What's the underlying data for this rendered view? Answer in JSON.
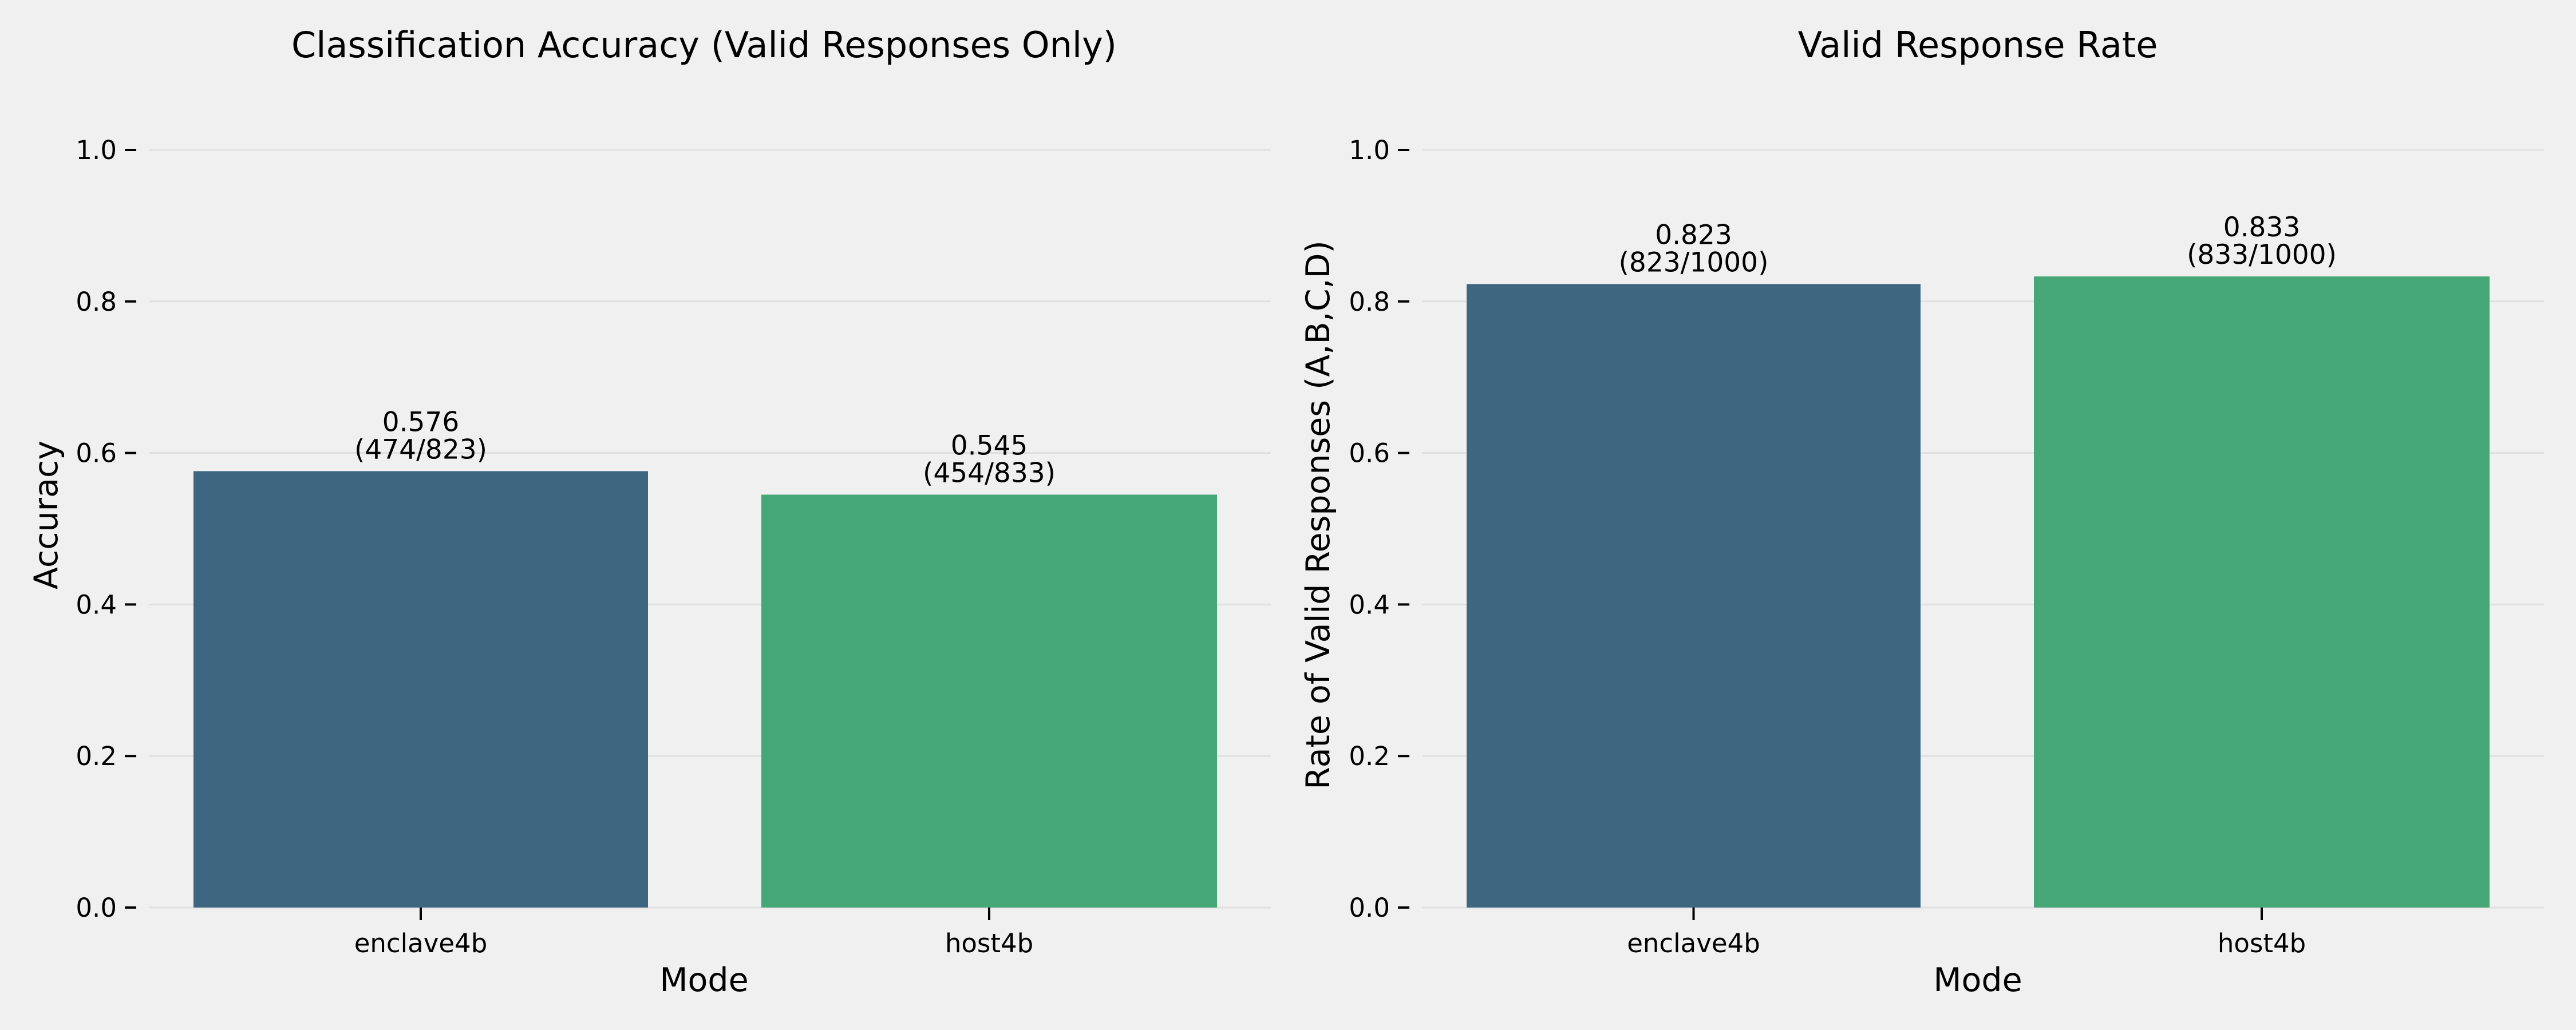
{
  "chart_data": [
    {
      "type": "bar",
      "title": "Classification Accuracy (Valid Responses Only)",
      "xlabel": "Mode",
      "ylabel": "Accuracy",
      "categories": [
        "enclave4b",
        "host4b"
      ],
      "values": [
        0.576,
        0.545
      ],
      "bar_labels": [
        [
          "0.576",
          "(474/823)"
        ],
        [
          "0.545",
          "(454/833)"
        ]
      ],
      "colors": [
        "#3e6680",
        "#45a776"
      ],
      "ylim": [
        0,
        1.0
      ],
      "yticks": [
        "0.0",
        "0.2",
        "0.4",
        "0.6",
        "0.8",
        "1.0"
      ],
      "grid": "horizontal",
      "legend": "none"
    },
    {
      "type": "bar",
      "title": "Valid Response Rate",
      "xlabel": "Mode",
      "ylabel": "Rate of Valid Responses (A,B,C,D)",
      "categories": [
        "enclave4b",
        "host4b"
      ],
      "values": [
        0.823,
        0.833
      ],
      "bar_labels": [
        [
          "0.823",
          "(823/1000)"
        ],
        [
          "0.833",
          "(833/1000)"
        ]
      ],
      "colors": [
        "#3e6680",
        "#45a776"
      ],
      "ylim": [
        0,
        1.0
      ],
      "yticks": [
        "0.0",
        "0.2",
        "0.4",
        "0.6",
        "0.8",
        "1.0"
      ],
      "grid": "horizontal",
      "legend": "none"
    }
  ]
}
